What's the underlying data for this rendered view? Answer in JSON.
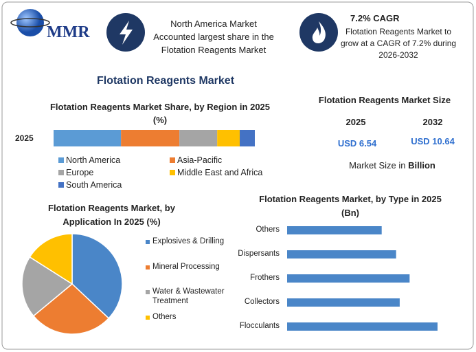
{
  "header": {
    "logo": "MMR",
    "highlight": {
      "lines": [
        "North America Market",
        "Accounted largest share in the",
        "Flotation Reagents Market"
      ]
    },
    "cagr": {
      "title": "7.2% CAGR",
      "lines": [
        "Flotation Reagents Market to",
        "grow at a CAGR of 7.2% during",
        "2026-2032"
      ]
    }
  },
  "title": "Flotation Reagents Market",
  "market_size": {
    "title": "Flotation Reagents Market Size",
    "years": [
      "2025",
      "2032"
    ],
    "values": [
      "USD 6.54",
      "USD 10.64"
    ],
    "note_prefix": "Market Size in",
    "note_unit": "Billion"
  },
  "chart_data": [
    {
      "type": "stacked-bar",
      "title": "Flotation Reagents Market Share, by Region in 2025 (%)",
      "categories": [
        "2025"
      ],
      "series": [
        {
          "name": "North America",
          "color": "#5b9bd5",
          "values": [
            33.5
          ]
        },
        {
          "name": "Asia-Pacific",
          "color": "#ed7d31",
          "values": [
            29
          ]
        },
        {
          "name": "Europe",
          "color": "#a5a5a5",
          "values": [
            18.8
          ]
        },
        {
          "name": "Middle East and Africa",
          "color": "#ffc000",
          "values": [
            11.2
          ]
        },
        {
          "name": "South America",
          "color": "#4472c4",
          "values": [
            7.5
          ]
        }
      ]
    },
    {
      "type": "pie",
      "title": "Flotation Reagents Market, by Application In 2025 (%)",
      "categories": [
        "Explosives & Drilling",
        "Mineral Processing",
        "Water & Wastewater Treatment",
        "Others"
      ],
      "values": [
        37,
        27,
        20,
        16
      ],
      "colors": [
        "#4a86c8",
        "#ed7d31",
        "#a5a5a5",
        "#ffc000"
      ]
    },
    {
      "type": "hbar",
      "title": "Flotation Reagents Market, by Type in 2025 (Bn)",
      "categories": [
        "Others",
        "Dispersants",
        "Frothers",
        "Collectors",
        "Flocculants"
      ],
      "values": [
        1.05,
        1.21,
        1.36,
        1.25,
        1.67
      ],
      "color": "#4a86c8"
    }
  ]
}
